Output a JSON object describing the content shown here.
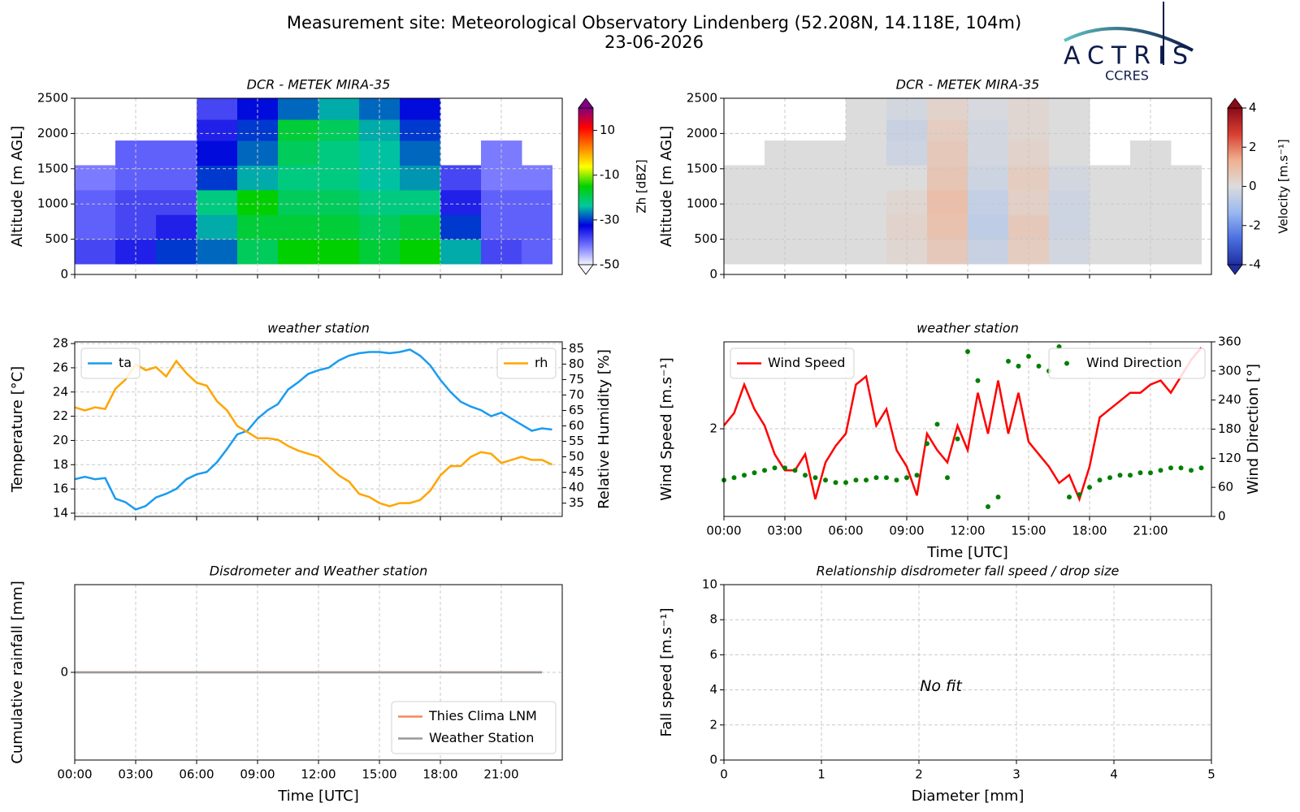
{
  "header": {
    "title": "Measurement site: Meteorological Observatory Lindenberg (52.208N, 14.118E, 104m)",
    "date": "23-06-2026",
    "logo_text": "ACTRIS",
    "logo_subtext": "CCRES"
  },
  "chart_data": [
    {
      "type": "heatmap",
      "title": "DCR - METEK MIRA-35",
      "ylabel": "Altitude [m AGL]",
      "x_edges": [
        0,
        2,
        4,
        6,
        8,
        10,
        12,
        14,
        16,
        18,
        20,
        22,
        23.5
      ],
      "y_edges": [
        150,
        500,
        850,
        1200,
        1550,
        1900,
        2200,
        2500
      ],
      "z": [
        [
          -38,
          -35,
          -30,
          -28,
          -20,
          -15,
          -15,
          -18,
          -15,
          -25,
          -38,
          -40
        ],
        [
          -40,
          -38,
          -35,
          -25,
          -18,
          -18,
          -18,
          -20,
          -18,
          -30,
          -40,
          -40
        ],
        [
          -40,
          -38,
          -38,
          -22,
          -15,
          -20,
          -20,
          -22,
          -22,
          -35,
          -40,
          -40
        ],
        [
          -42,
          -40,
          -40,
          -30,
          -25,
          -22,
          -22,
          -24,
          -26,
          -38,
          -42,
          -42
        ],
        [
          null,
          -40,
          -40,
          -32,
          -28,
          -20,
          -22,
          -24,
          -28,
          null,
          -42,
          null
        ],
        [
          null,
          null,
          null,
          -35,
          -30,
          -18,
          -20,
          -25,
          -30,
          null,
          null,
          null
        ],
        [
          null,
          null,
          null,
          -38,
          -32,
          -28,
          -25,
          -28,
          -32,
          null,
          null,
          null
        ]
      ],
      "xlim": [
        0,
        24
      ],
      "xticks": [
        0,
        3,
        6,
        9,
        12,
        15,
        18,
        21
      ],
      "xtick_labels": false,
      "ylim": [
        0,
        2500
      ],
      "yticks": [
        0,
        500,
        1000,
        1500,
        2000,
        2500
      ],
      "grid": true,
      "colorbar": {
        "label": "Zh [dBZ]",
        "lim": [
          -50,
          20
        ],
        "ticks": [
          -50,
          -30,
          -10,
          10
        ],
        "colors": [
          "#f5f5ff",
          "#7070ff",
          "#0000e0",
          "#00c8a0",
          "#00d000",
          "#ffff00",
          "#ff8000",
          "#ff0000",
          "#800080"
        ]
      }
    },
    {
      "type": "heatmap",
      "title": "DCR - METEK MIRA-35",
      "ylabel": "Altitude [m AGL]",
      "x_edges": [
        0,
        2,
        4,
        6,
        8,
        10,
        12,
        14,
        16,
        18,
        20,
        22,
        23.5
      ],
      "y_edges": [
        150,
        500,
        850,
        1200,
        1550,
        1900,
        2200,
        2500
      ],
      "z": [
        [
          0,
          0,
          0,
          0,
          0.2,
          0.6,
          -0.4,
          0.5,
          -0.2,
          0,
          0,
          0
        ],
        [
          0,
          0,
          0,
          0,
          0.3,
          0.8,
          -0.6,
          0.6,
          -0.3,
          0,
          0,
          0
        ],
        [
          0,
          0,
          0,
          0,
          0.2,
          0.9,
          -0.5,
          0.4,
          -0.3,
          0,
          0,
          0
        ],
        [
          0,
          0,
          0,
          0,
          0,
          0.7,
          -0.3,
          0.5,
          -0.2,
          0,
          0,
          0
        ],
        [
          null,
          0,
          0,
          0,
          -0.3,
          0.6,
          -0.2,
          0.3,
          0,
          null,
          0,
          null
        ],
        [
          null,
          null,
          null,
          0,
          -0.4,
          0.5,
          -0.2,
          0.2,
          0,
          null,
          null,
          null
        ],
        [
          null,
          null,
          null,
          0,
          -0.2,
          0.3,
          -0.1,
          0.2,
          0,
          null,
          null,
          null
        ]
      ],
      "xlim": [
        0,
        24
      ],
      "xticks": [
        0,
        3,
        6,
        9,
        12,
        15,
        18,
        21
      ],
      "xtick_labels": false,
      "ylim": [
        0,
        2500
      ],
      "yticks": [
        0,
        500,
        1000,
        1500,
        2000,
        2500
      ],
      "grid": true,
      "colorbar": {
        "label": "Velocity [m.s⁻¹]",
        "lim": [
          -4,
          4
        ],
        "ticks": [
          -4,
          -2,
          0,
          2,
          4
        ],
        "colors": [
          "#1f2fa0",
          "#4a6fe0",
          "#9ab8f0",
          "#dcdcdc",
          "#f0b090",
          "#d84030",
          "#8b0a1a"
        ]
      }
    },
    {
      "type": "line",
      "title": "weather station",
      "ylabel": "Temperature [°C]",
      "y2label": "Relative Humidity [%]",
      "x": [
        0,
        0.5,
        1,
        1.5,
        2,
        2.5,
        3,
        3.5,
        4,
        4.5,
        5,
        5.5,
        6,
        6.5,
        7,
        7.5,
        8,
        8.5,
        9,
        9.5,
        10,
        10.5,
        11,
        11.5,
        12,
        12.5,
        13,
        13.5,
        14,
        14.5,
        15,
        15.5,
        16,
        16.5,
        17,
        17.5,
        18,
        18.5,
        19,
        19.5,
        20,
        20.5,
        21,
        21.5,
        22,
        22.5,
        23,
        23.5
      ],
      "series": [
        {
          "name": "ta",
          "color": "#1a9bf0",
          "legend": "upper left",
          "values": [
            16.8,
            17.0,
            16.8,
            16.9,
            15.2,
            14.9,
            14.3,
            14.6,
            15.3,
            15.6,
            16.0,
            16.8,
            17.2,
            17.4,
            18.2,
            19.3,
            20.5,
            20.8,
            21.8,
            22.5,
            23.0,
            24.2,
            24.8,
            25.5,
            25.8,
            26.0,
            26.6,
            27.0,
            27.2,
            27.3,
            27.3,
            27.2,
            27.3,
            27.5,
            27.0,
            26.2,
            25.0,
            24.0,
            23.2,
            22.8,
            22.5,
            22.0,
            22.3,
            21.8,
            21.3,
            20.8,
            21.0,
            20.9
          ]
        },
        {
          "name": "rh",
          "color": "#ffa500",
          "axis": "y2",
          "legend": "upper right",
          "values": [
            66,
            65,
            66,
            65.5,
            72,
            75,
            80,
            78,
            79,
            76,
            81,
            77,
            74,
            73,
            68,
            65,
            60,
            58,
            56,
            56,
            55.5,
            53.5,
            52,
            51,
            50,
            47,
            44,
            42,
            38,
            37,
            35,
            34,
            35,
            35,
            36,
            39,
            44,
            47,
            47,
            50,
            51.5,
            51,
            48,
            49,
            50,
            49,
            49,
            47.5
          ]
        }
      ],
      "xlim": [
        0,
        24
      ],
      "xticks": [
        0,
        3,
        6,
        9,
        12,
        15,
        18,
        21
      ],
      "xtick_labels": false,
      "ylim": [
        13.73,
        28.14
      ],
      "yticks": [
        14,
        16,
        18,
        20,
        22,
        24,
        26,
        28
      ],
      "y2lim": [
        30.7,
        87.2
      ],
      "y2ticks": [
        35,
        40,
        45,
        50,
        55,
        60,
        65,
        70,
        75,
        80,
        85
      ],
      "grid": true
    },
    {
      "type": "line",
      "title": "weather station",
      "ylabel": "Wind Speed [m.s⁻¹]",
      "y2label": "Wind Direction [°]",
      "xlabel": "Time [UTC]",
      "x": [
        0,
        0.5,
        1,
        1.5,
        2,
        2.5,
        3,
        3.5,
        4,
        4.5,
        5,
        5.5,
        6,
        6.5,
        7,
        7.5,
        8,
        8.5,
        9,
        9.5,
        10,
        10.5,
        11,
        11.5,
        12,
        12.5,
        13,
        13.5,
        14,
        14.5,
        15,
        15.5,
        16,
        16.5,
        17,
        17.5,
        18,
        18.5,
        19,
        19.5,
        20,
        20.5,
        21,
        21.5,
        22,
        22.5,
        23,
        23.5
      ],
      "series": [
        {
          "name": "Wind Speed",
          "color": "#ff0000",
          "legend": "upper left",
          "values": [
            2.09,
            2.48,
            3.67,
            2.62,
            2.09,
            1.41,
            1.13,
            1.13,
            1.41,
            0.76,
            1.26,
            1.58,
            1.87,
            3.67,
            4.11,
            2.09,
            2.62,
            1.49,
            1.19,
            0.8,
            1.87,
            1.49,
            1.26,
            2.09,
            1.49,
            3.28,
            1.87,
            3.88,
            1.87,
            3.28,
            1.67,
            1.41,
            1.19,
            0.95,
            1.06,
            0.76,
            1.19,
            2.34,
            2.62,
            2.93,
            3.28,
            3.28,
            3.67,
            3.88,
            3.28,
            4.11,
            5.15,
            6.1
          ]
        },
        {
          "name": "Wind Direction",
          "color": "#008000",
          "axis": "y2",
          "style": "dots",
          "legend": "upper right",
          "values": [
            75,
            80,
            85,
            90,
            95,
            100,
            100,
            95,
            85,
            80,
            75,
            70,
            70,
            75,
            75,
            80,
            80,
            75,
            80,
            85,
            150,
            190,
            80,
            160,
            340,
            280,
            20,
            40,
            320,
            310,
            330,
            310,
            300,
            350,
            40,
            45,
            60,
            75,
            80,
            85,
            85,
            90,
            90,
            95,
            100,
            100,
            95,
            100
          ]
        }
      ],
      "xlim": [
        0,
        24
      ],
      "xticks": [
        {
          "value": 0,
          "label": "00:00"
        },
        {
          "value": 3,
          "label": "03:00"
        },
        {
          "value": 6,
          "label": "06:00"
        },
        {
          "value": 9,
          "label": "09:00"
        },
        {
          "value": 12,
          "label": "12:00"
        },
        {
          "value": 15,
          "label": "15:00"
        },
        {
          "value": 18,
          "label": "18:00"
        },
        {
          "value": 21,
          "label": "21:00"
        }
      ],
      "ylim": [
        0.6,
        6.6
      ],
      "yscale": "log",
      "yticks": [
        2
      ],
      "y2lim": [
        0,
        360
      ],
      "y2ticks": [
        0,
        60,
        120,
        180,
        240,
        300,
        360
      ],
      "grid": true
    },
    {
      "type": "line",
      "title": "Disdrometer and Weather station",
      "ylabel": "Cumulative rainfall [mm]",
      "xlabel": "Time [UTC]",
      "x": [
        0,
        23
      ],
      "series": [
        {
          "name": "Thies Clima LNM",
          "color": "#f08c5a",
          "legend": "lower right",
          "values": [
            0,
            0
          ]
        },
        {
          "name": "Weather Station",
          "color": "#999999",
          "legend": "lower right",
          "values": [
            0,
            0
          ]
        }
      ],
      "xlim": [
        0,
        24
      ],
      "xticks": [
        {
          "value": 0,
          "label": "00:00"
        },
        {
          "value": 3,
          "label": "03:00"
        },
        {
          "value": 6,
          "label": "06:00"
        },
        {
          "value": 9,
          "label": "09:00"
        },
        {
          "value": 12,
          "label": "12:00"
        },
        {
          "value": 15,
          "label": "15:00"
        },
        {
          "value": 18,
          "label": "18:00"
        },
        {
          "value": 21,
          "label": "21:00"
        }
      ],
      "ylim": [
        -1,
        1
      ],
      "yticks": [
        0
      ],
      "grid": true
    },
    {
      "type": "scatter",
      "title": "Relationship disdrometer fall speed / drop size",
      "ylabel": "Fall speed [m.s⁻¹]",
      "xlabel": "Diameter [mm]",
      "annotation": "No fit",
      "xlim": [
        0,
        5
      ],
      "xticks": [
        0,
        1,
        2,
        3,
        4,
        5
      ],
      "ylim": [
        0,
        10
      ],
      "yticks": [
        0,
        2,
        4,
        6,
        8,
        10
      ],
      "grid": true
    }
  ]
}
